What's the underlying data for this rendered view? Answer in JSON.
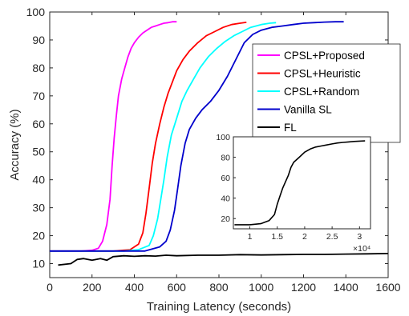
{
  "chart_data": [
    {
      "type": "line",
      "title": "",
      "xlabel": "Training Latency (seconds)",
      "ylabel": "Accuracy (%)",
      "xlim": [
        0,
        1600
      ],
      "ylim": [
        5,
        100
      ],
      "x_ticks": [
        0,
        200,
        400,
        600,
        800,
        1000,
        1200,
        1400,
        1600
      ],
      "y_ticks": [
        10,
        20,
        30,
        40,
        50,
        60,
        70,
        80,
        90,
        100
      ],
      "grid": false,
      "legend_position": "right",
      "series": [
        {
          "name": "CPSL+Proposed",
          "color": "#ff00ff",
          "x": [
            0,
            150,
            200,
            230,
            250,
            270,
            285,
            295,
            305,
            315,
            325,
            340,
            355,
            370,
            385,
            400,
            420,
            440,
            460,
            480,
            500,
            520,
            540,
            560,
            580,
            600
          ],
          "y": [
            14.5,
            14.5,
            14.8,
            15.5,
            18,
            24,
            33,
            45,
            55,
            63,
            70,
            76,
            80,
            84,
            87,
            89,
            91,
            92.5,
            93.5,
            94.5,
            95,
            95.5,
            96,
            96.2,
            96.5,
            96.5
          ]
        },
        {
          "name": "CPSL+Heuristic",
          "color": "#ff0000",
          "x": [
            0,
            300,
            380,
            420,
            440,
            455,
            470,
            485,
            500,
            520,
            540,
            560,
            580,
            600,
            630,
            660,
            700,
            740,
            780,
            820,
            860,
            900,
            930
          ],
          "y": [
            14.5,
            14.5,
            15,
            17,
            21,
            28,
            37,
            46,
            53,
            60,
            66,
            71,
            75,
            79,
            83,
            86,
            89,
            91.5,
            93,
            94.5,
            95.5,
            96,
            96.3
          ]
        },
        {
          "name": "CPSL+Random",
          "color": "#00ffff",
          "x": [
            0,
            350,
            420,
            470,
            490,
            510,
            525,
            540,
            555,
            575,
            600,
            625,
            650,
            680,
            710,
            750,
            790,
            830,
            870,
            910,
            950,
            1000,
            1040,
            1070
          ],
          "y": [
            14.5,
            14.5,
            15,
            16.5,
            20,
            26,
            33,
            40,
            48,
            56,
            62,
            68,
            72,
            76,
            80,
            84,
            87,
            89.5,
            91.5,
            93,
            94.5,
            95.5,
            96,
            96.2
          ]
        },
        {
          "name": "Vanilla SL",
          "color": "#0000cc",
          "x": [
            0,
            450,
            520,
            550,
            570,
            590,
            605,
            620,
            640,
            660,
            690,
            720,
            760,
            800,
            840,
            880,
            920,
            960,
            1000,
            1050,
            1100,
            1150,
            1200,
            1250,
            1300,
            1350,
            1390
          ],
          "y": [
            14.5,
            14.5,
            16,
            18,
            22,
            29,
            37,
            45,
            53,
            58,
            62,
            65,
            68,
            72,
            77,
            83,
            89,
            92,
            93.5,
            94.5,
            95,
            95.5,
            96,
            96.2,
            96.4,
            96.5,
            96.5
          ]
        },
        {
          "name": "FL",
          "color": "#000000",
          "x": [
            40,
            100,
            130,
            160,
            200,
            240,
            270,
            300,
            350,
            400,
            450,
            500,
            550,
            600,
            700,
            800,
            900,
            1000,
            1100,
            1200,
            1300,
            1400,
            1500,
            1600
          ],
          "y": [
            9.5,
            10,
            11.5,
            11.8,
            11.2,
            11.8,
            11.2,
            12.5,
            12.8,
            12.6,
            12.8,
            12.7,
            13,
            12.8,
            13,
            13,
            13.2,
            13.1,
            13.2,
            13.3,
            13.3,
            13.4,
            13.5,
            13.6
          ]
        }
      ]
    },
    {
      "type": "line",
      "title": "",
      "x_scale_label": "×10⁴",
      "xlim": [
        0.7,
        3.2
      ],
      "ylim": [
        10,
        100
      ],
      "x_ticks": [
        1,
        1.5,
        2,
        2.5,
        3
      ],
      "y_ticks": [
        20,
        40,
        60,
        80,
        100
      ],
      "grid": false,
      "series": [
        {
          "color": "#000000",
          "x": [
            0.72,
            1.0,
            1.2,
            1.35,
            1.45,
            1.5,
            1.55,
            1.6,
            1.65,
            1.7,
            1.75,
            1.8,
            1.9,
            2.0,
            2.1,
            2.2,
            2.3,
            2.4,
            2.5,
            2.6,
            2.7,
            2.8,
            2.9,
            3.0,
            3.1
          ],
          "y": [
            14,
            14,
            15,
            18,
            24,
            34,
            42,
            50,
            56,
            62,
            70,
            75,
            80,
            85,
            88,
            90,
            91,
            92,
            93,
            94,
            94.5,
            95,
            95.5,
            95.8,
            96
          ]
        }
      ]
    }
  ]
}
